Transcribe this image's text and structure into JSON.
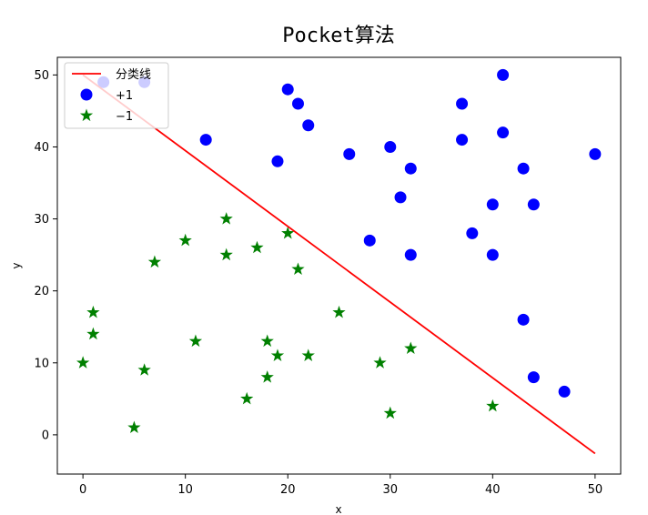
{
  "chart_data": {
    "type": "scatter",
    "title": "Pocket算法",
    "xlabel": "x",
    "ylabel": "y",
    "xlim": [
      -2.5,
      52.5
    ],
    "ylim": [
      -5.45,
      52.45
    ],
    "xticks": [
      0,
      10,
      20,
      30,
      40,
      50
    ],
    "yticks": [
      0,
      10,
      20,
      30,
      40,
      50
    ],
    "grid": false,
    "legend_position": "top-left",
    "series": [
      {
        "name": "分类线",
        "kind": "line",
        "color": "#ff0000",
        "x": [
          0,
          50
        ],
        "y": [
          50,
          -2.6
        ]
      },
      {
        "name": "+1",
        "kind": "scatter",
        "marker": "circle",
        "color": "#0000ff",
        "x": [
          2,
          6,
          12,
          19,
          20,
          21,
          22,
          26,
          28,
          30,
          31,
          32,
          32,
          37,
          37,
          38,
          40,
          40,
          41,
          41,
          43,
          43,
          44,
          44,
          47,
          50
        ],
        "y": [
          49,
          49,
          41,
          38,
          48,
          46,
          43,
          39,
          27,
          40,
          33,
          37,
          25,
          46,
          41,
          28,
          32,
          25,
          50,
          42,
          37,
          16,
          32,
          8,
          6,
          39
        ]
      },
      {
        "name": "−1",
        "kind": "scatter",
        "marker": "star",
        "color": "#008000",
        "x": [
          0,
          1,
          1,
          5,
          6,
          7,
          10,
          11,
          14,
          14,
          16,
          17,
          18,
          18,
          19,
          20,
          21,
          22,
          25,
          29,
          30,
          32,
          40
        ],
        "y": [
          10,
          17,
          14,
          1,
          9,
          24,
          27,
          13,
          30,
          25,
          5,
          26,
          13,
          8,
          11,
          28,
          23,
          11,
          17,
          10,
          3,
          12,
          4
        ]
      }
    ]
  }
}
